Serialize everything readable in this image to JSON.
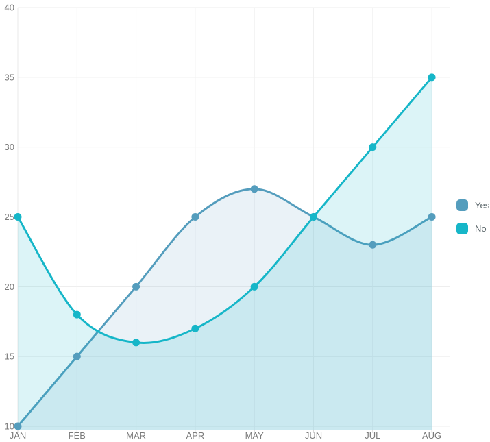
{
  "chart_data": {
    "type": "area",
    "title": "",
    "xlabel": "",
    "ylabel": "",
    "x_categories": [
      "JAN",
      "FEB",
      "MAR",
      "APR",
      "MAY",
      "JUN",
      "JUL",
      "AUG"
    ],
    "series": [
      {
        "name": "Yes",
        "values": [
          10,
          15,
          20,
          25,
          27,
          25,
          23,
          25
        ],
        "color": "#549dbd",
        "fill": "rgba(91,158,192,0.13)"
      },
      {
        "name": "No",
        "values": [
          25,
          18,
          16,
          17,
          20,
          25,
          30,
          35
        ],
        "color": "#16b6c8",
        "fill": "rgba(22,183,201,0.15)"
      }
    ],
    "ylim": [
      10,
      40
    ],
    "yticks": [
      10,
      15,
      20,
      25,
      30,
      35,
      40
    ],
    "grid": true,
    "smooth": true,
    "legend_position": "right",
    "axis_label_color": "#7b7b7b",
    "gridline_color": "#ececec",
    "axisline_color": "#dcdcdc"
  }
}
